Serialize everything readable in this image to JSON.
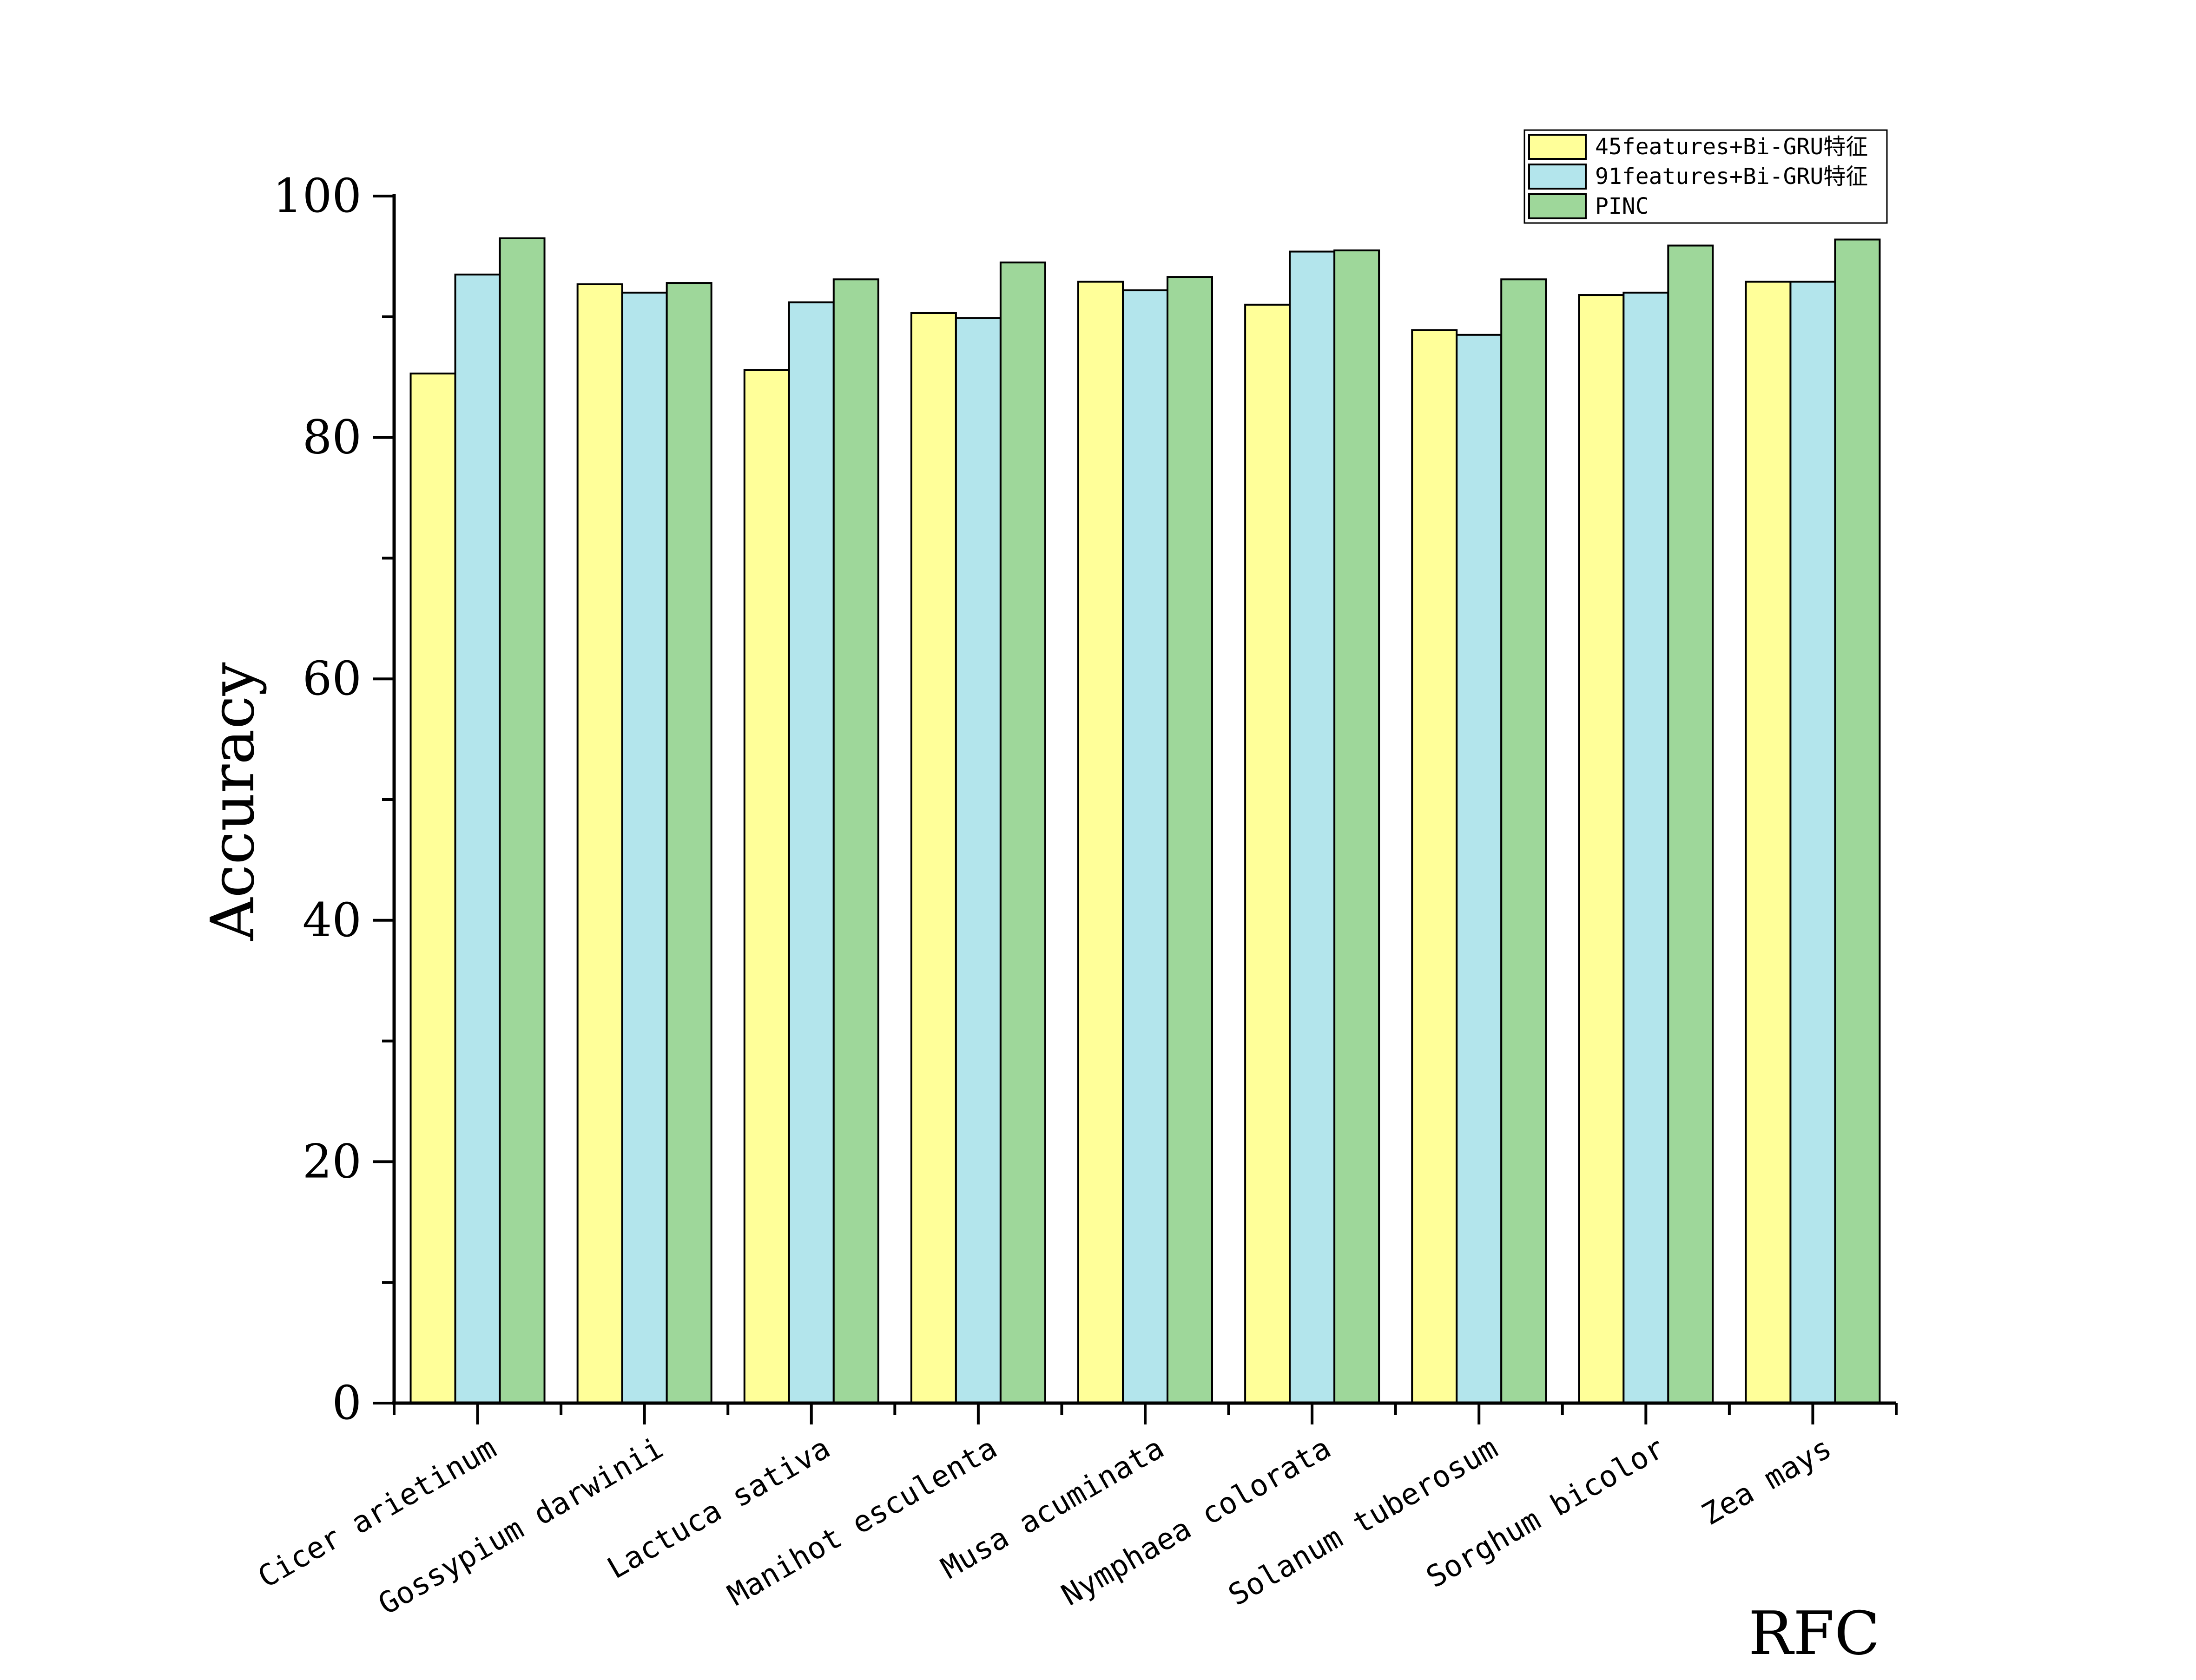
{
  "chart_data": {
    "type": "bar",
    "title": "",
    "xlabel": "RFC",
    "ylabel": "Accuracy",
    "ylim": [
      0,
      100
    ],
    "yticks": [
      0,
      20,
      40,
      60,
      80,
      100
    ],
    "legend_position": "top-right",
    "categories": [
      "Cicer arietinum",
      "Gossypium darwinii",
      "Lactuca sativa",
      "Manihot esculenta",
      "Musa acuminata",
      "Nymphaea colorata",
      "Solanum tuberosum",
      "Sorghum bicolor",
      "Zea mays"
    ],
    "series": [
      {
        "name": "45features+Bi-GRU特征",
        "color": "#FFFF99",
        "values": [
          85.3,
          92.7,
          85.6,
          90.3,
          92.9,
          91.0,
          88.9,
          91.8,
          92.9
        ]
      },
      {
        "name": "91features+Bi-GRU特征",
        "color": "#B3E5EC",
        "values": [
          93.5,
          92.0,
          91.2,
          89.9,
          92.2,
          95.4,
          88.5,
          92.0,
          92.9
        ]
      },
      {
        "name": "PINC",
        "color": "#9ED79A",
        "values": [
          96.5,
          92.8,
          93.1,
          94.5,
          93.3,
          95.5,
          93.1,
          95.9,
          96.4
        ]
      }
    ]
  }
}
